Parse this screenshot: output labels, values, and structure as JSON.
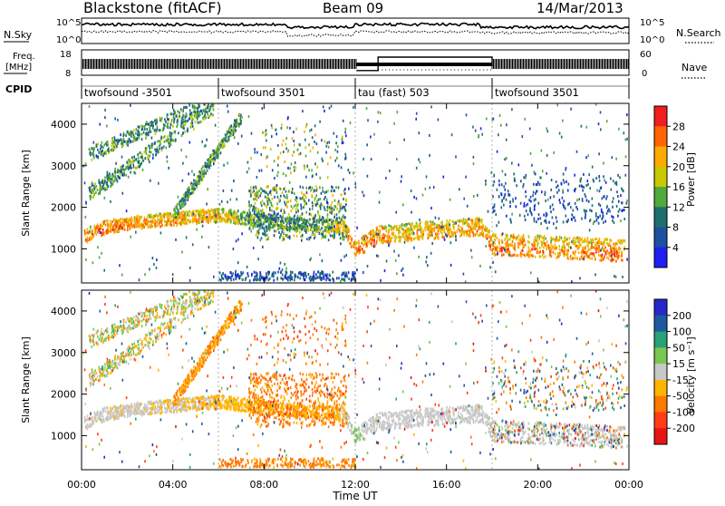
{
  "header": {
    "title": "Blackstone (fitACF)",
    "beam": "Beam 09",
    "date": "14/Mar/2013"
  },
  "strip_labels": {
    "nsky": "N.Sky",
    "nsearch": "N.Search",
    "freq_line1": "Freq.",
    "freq_line2": "[MHz]",
    "nave": "Nave",
    "cpid": "CPID",
    "noise_ticks": [
      "10^5",
      "10^0"
    ],
    "freq_ticks": [
      "18",
      "8"
    ],
    "nave_ticks": [
      "60",
      "0"
    ]
  },
  "cpid_segments": [
    {
      "label": "twofsound -3501",
      "start": 0,
      "end": 6
    },
    {
      "label": "twofsound 3501",
      "start": 6,
      "end": 12
    },
    {
      "label": "tau (fast) 503",
      "start": 12,
      "end": 18
    },
    {
      "label": "twofsound 3501",
      "start": 18,
      "end": 24
    }
  ],
  "axes": {
    "xlabel": "Time UT",
    "x_ticks": [
      "00:00",
      "04:00",
      "08:00",
      "12:00",
      "16:00",
      "20:00",
      "00:00"
    ],
    "ylabel": "Slant Range [km]",
    "y_ticks": [
      "1000",
      "2000",
      "3000",
      "4000"
    ]
  },
  "colorbars": {
    "power": {
      "label": "Power [dB]",
      "ticks": [
        "4",
        "8",
        "12",
        "16",
        "20",
        "24",
        "28"
      ],
      "colors": [
        "#1e1ef0",
        "#1e50a0",
        "#1e6e6e",
        "#50aa3c",
        "#c8c800",
        "#ffaa00",
        "#ff6400",
        "#f01e1e"
      ]
    },
    "velocity": {
      "label": "Velocity [m s⁻¹]",
      "ticks": [
        "200",
        "100",
        "50",
        "15",
        "-15",
        "-50",
        "-100",
        "-200"
      ],
      "colors": [
        "#2828c8",
        "#1e5aa0",
        "#28a078",
        "#78c850",
        "#c8c8c8",
        "#ffb400",
        "#ff7800",
        "#ff3c14",
        "#e61414"
      ]
    }
  },
  "chart_data": [
    {
      "type": "heatmap",
      "title": "Power",
      "xlabel": "Time UT",
      "ylabel": "Slant Range [km]",
      "xlim": [
        0,
        24
      ],
      "ylim": [
        180,
        4500
      ],
      "colorbar_label": "Power [dB]",
      "colorbar_range": [
        0,
        30
      ],
      "main_band_range_km": [
        [
          0,
          1200
        ],
        [
          1,
          1450
        ],
        [
          2,
          1550
        ],
        [
          4,
          1650
        ],
        [
          6,
          1750
        ],
        [
          8,
          1600
        ],
        [
          10,
          1500
        ],
        [
          11.5,
          1450
        ],
        [
          12,
          900
        ],
        [
          13,
          1250
        ],
        [
          15,
          1350
        ],
        [
          17.5,
          1450
        ],
        [
          18,
          1000
        ],
        [
          20,
          950
        ],
        [
          22,
          900
        ],
        [
          23.5,
          850
        ]
      ],
      "main_band_power_dB": [
        [
          0,
          26
        ],
        [
          2,
          24
        ],
        [
          6,
          22
        ],
        [
          8,
          12
        ],
        [
          10,
          14
        ],
        [
          12,
          26
        ],
        [
          14,
          22
        ],
        [
          17.5,
          24
        ],
        [
          18,
          26
        ],
        [
          21,
          24
        ],
        [
          23.5,
          26
        ]
      ]
    },
    {
      "type": "heatmap",
      "title": "Velocity",
      "xlabel": "Time UT",
      "ylabel": "Slant Range [km]",
      "xlim": [
        0,
        24
      ],
      "ylim": [
        180,
        4500
      ],
      "colorbar_label": "Velocity [m s⁻¹]",
      "colorbar_range": [
        -250,
        250
      ],
      "main_band_velocity_ms": [
        [
          0,
          0
        ],
        [
          4,
          -10
        ],
        [
          8,
          -40
        ],
        [
          11,
          -40
        ],
        [
          12,
          25
        ],
        [
          12.5,
          0
        ],
        [
          16,
          0
        ],
        [
          20,
          5
        ],
        [
          23.5,
          0
        ]
      ]
    },
    {
      "type": "line",
      "title": "Frequency",
      "ylabel": "Freq. [MHz]",
      "ylim": [
        8,
        18
      ],
      "x": [
        0,
        12,
        12.5,
        18,
        24
      ],
      "series": [
        {
          "values": [
            10.5,
            10.5,
            10.5,
            10.5,
            10.5
          ]
        }
      ]
    },
    {
      "type": "line",
      "title": "Nave",
      "ylabel": "Nave",
      "ylim": [
        0,
        60
      ],
      "x": [
        0,
        12,
        13,
        18,
        24
      ],
      "series": [
        {
          "values": [
            20,
            8,
            45,
            20,
            20
          ]
        }
      ]
    }
  ]
}
